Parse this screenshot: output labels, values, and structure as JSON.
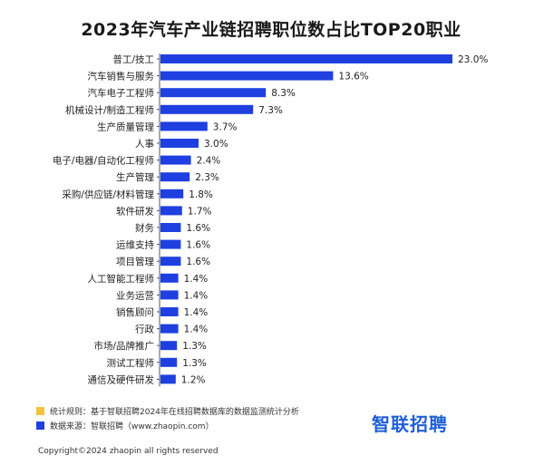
{
  "title": "2023年汽车产业链招聘职位数占比TOP20职业",
  "chart_data": {
    "type": "bar",
    "orientation": "horizontal",
    "title": "2023年汽车产业链招聘职位数占比TOP20职业",
    "xlabel": "",
    "ylabel": "",
    "xlim": [
      0,
      23
    ],
    "grid": false,
    "bar_color": "#1f3fe0",
    "categories": [
      "普工/技工",
      "汽车销售与服务",
      "汽车电子工程师",
      "机械设计/制造工程师",
      "生产质量管理",
      "人事",
      "电子/电器/自动化工程师",
      "生产管理",
      "采购/供应链/材料管理",
      "软件研发",
      "财务",
      "运维支持",
      "项目管理",
      "人工智能工程师",
      "业务运营",
      "销售顾问",
      "行政",
      "市场/品牌推广",
      "测试工程师",
      "通信及硬件研发"
    ],
    "values": [
      23.0,
      13.6,
      8.3,
      7.3,
      3.7,
      3.0,
      2.4,
      2.3,
      1.8,
      1.7,
      1.6,
      1.6,
      1.6,
      1.4,
      1.4,
      1.4,
      1.4,
      1.3,
      1.3,
      1.2
    ],
    "value_labels": [
      "23.0%",
      "13.6%",
      "8.3%",
      "7.3%",
      "3.7%",
      "3.0%",
      "2.4%",
      "2.3%",
      "1.8%",
      "1.7%",
      "1.6%",
      "1.6%",
      "1.6%",
      "1.4%",
      "1.4%",
      "1.4%",
      "1.4%",
      "1.3%",
      "1.3%",
      "1.2%"
    ]
  },
  "notes": [
    {
      "text": "统计规则：基于智联招聘2024年在线招聘数据库的数据监测统计分析",
      "color": "#f2c43b"
    },
    {
      "text": "数据来源：智联招聘（www.zhaopin.com）",
      "color": "#1f3fe0"
    }
  ],
  "logo_text": "智联招聘",
  "copyright": "Copyright©2024 zhaopin all rights reserved"
}
